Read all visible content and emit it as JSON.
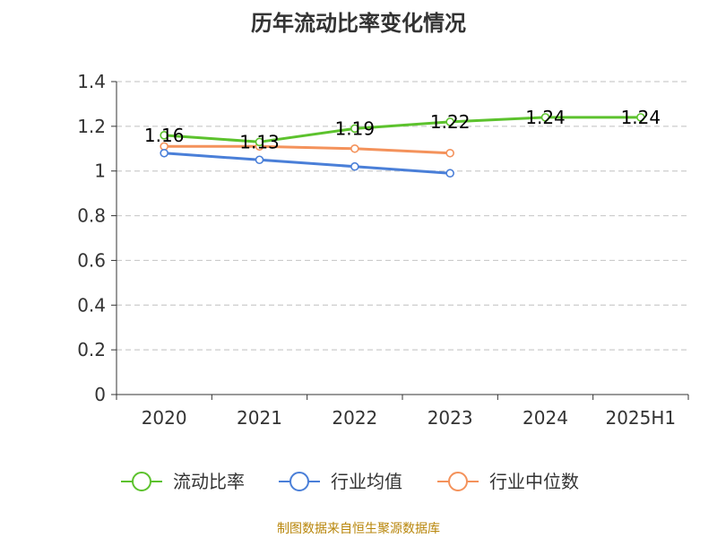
{
  "chart_data": {
    "type": "line",
    "title": "历年流动比率变化情况",
    "categories": [
      "2020",
      "2021",
      "2022",
      "2023",
      "2024",
      "2025H1"
    ],
    "ylim": [
      0,
      1.4
    ],
    "yticks": [
      "0",
      "0.2",
      "0.4",
      "0.6",
      "0.8",
      "1",
      "1.2",
      "1.4"
    ],
    "ytick_values": [
      0,
      0.2,
      0.4,
      0.6,
      0.8,
      1.0,
      1.2,
      1.4
    ],
    "grid": true,
    "legend_position": "bottom",
    "series": [
      {
        "name": "流动比率",
        "color": "#5cc22d",
        "values": [
          1.16,
          1.13,
          1.19,
          1.22,
          1.24,
          1.24
        ],
        "labels": [
          "1.16",
          "1.13",
          "1.19",
          "1.22",
          "1.24",
          "1.24"
        ]
      },
      {
        "name": "行业均值",
        "color": "#4a7fd8",
        "values": [
          1.08,
          1.05,
          1.02,
          0.99,
          null,
          null
        ]
      },
      {
        "name": "行业中位数",
        "color": "#f4925b",
        "values": [
          1.11,
          1.11,
          1.1,
          1.08,
          null,
          null
        ]
      }
    ],
    "source": "制图数据来自恒生聚源数据库"
  }
}
